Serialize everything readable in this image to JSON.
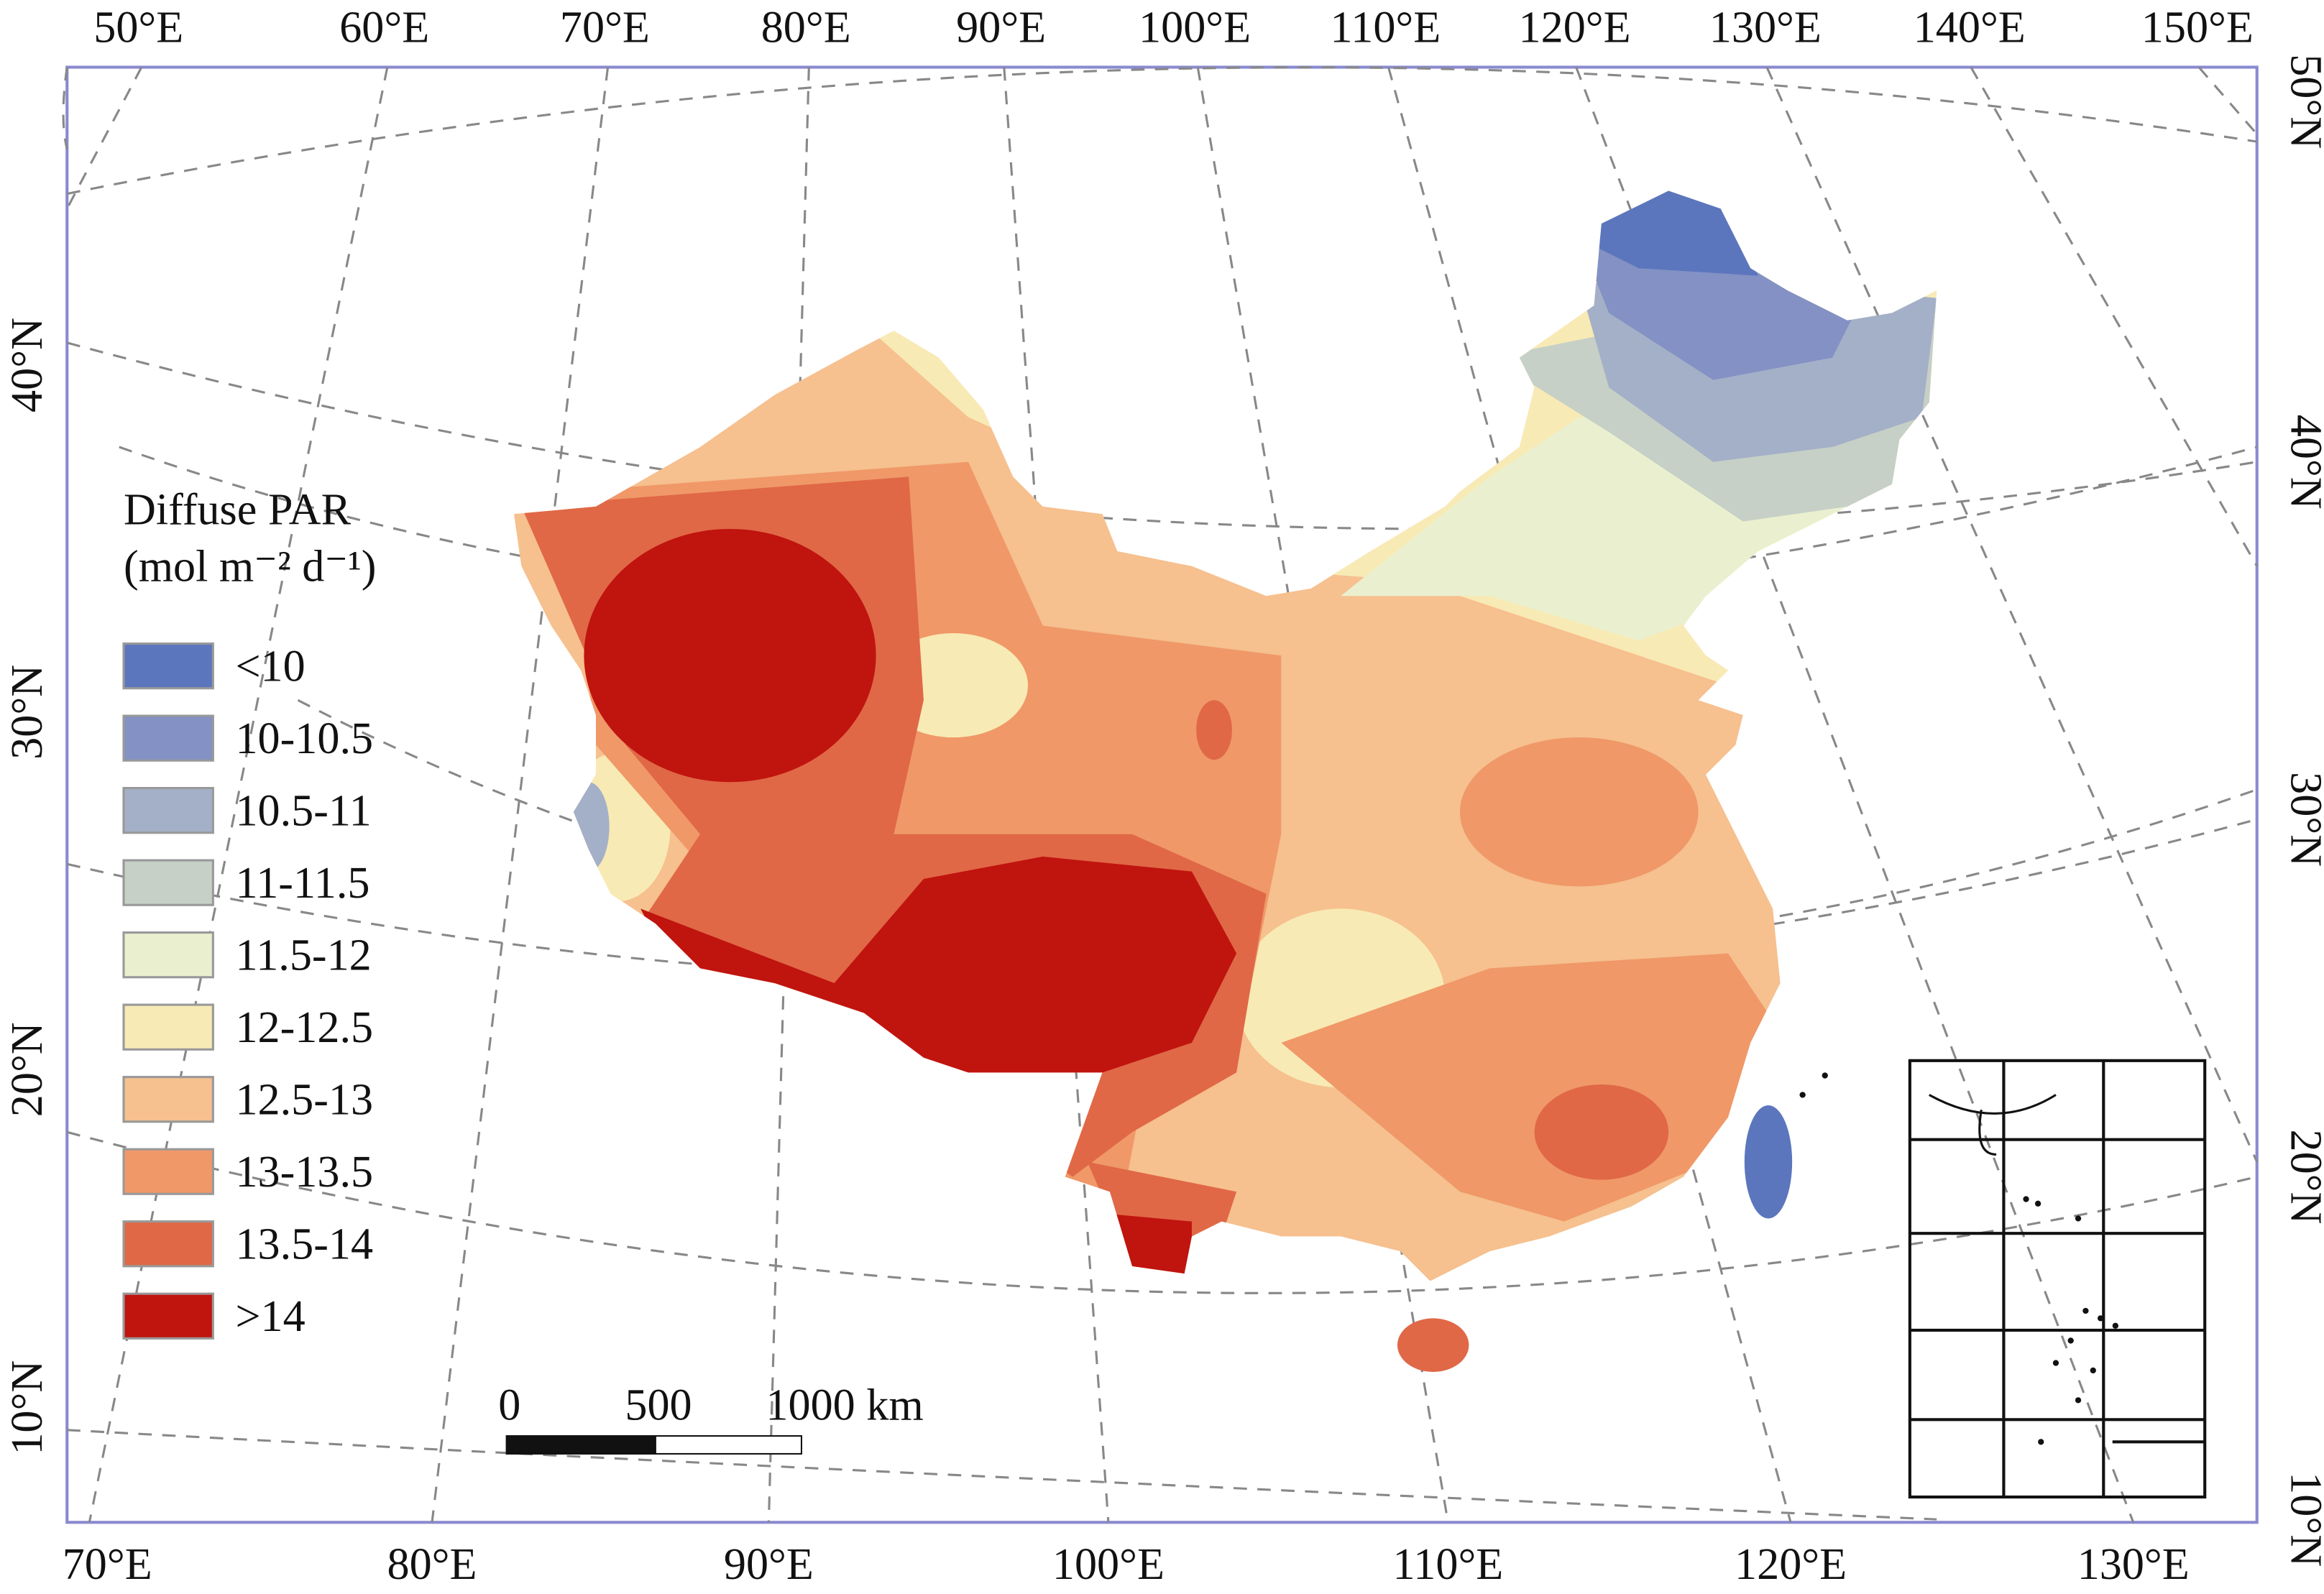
{
  "top_labels": [
    "50°E",
    "60°E",
    "70°E",
    "80°E",
    "90°E",
    "100°E",
    "110°E",
    "120°E",
    "130°E",
    "140°E",
    "150°E"
  ],
  "bottom_labels": [
    "70°E",
    "80°E",
    "90°E",
    "100°E",
    "110°E",
    "120°E",
    "130°E"
  ],
  "left_labels": [
    "40°N",
    "30°N",
    "20°N",
    "10°N"
  ],
  "right_labels": [
    "50°N",
    "40°N",
    "30°N",
    "20°N",
    "10°N"
  ],
  "legend": {
    "title": "Diffuse PAR",
    "unit": "(mol m⁻² d⁻¹)",
    "items": [
      {
        "label": "<10",
        "color": "#5b76bd"
      },
      {
        "label": "10-10.5",
        "color": "#8391c4"
      },
      {
        "label": "10.5-11",
        "color": "#a4b0c8"
      },
      {
        "label": "11-11.5",
        "color": "#c6d0c6"
      },
      {
        "label": "11.5-12",
        "color": "#eaf0cf"
      },
      {
        "label": "12-12.5",
        "color": "#f8eab4"
      },
      {
        "label": "12.5-13",
        "color": "#f6c08f"
      },
      {
        "label": "13-13.5",
        "color": "#f09868"
      },
      {
        "label": "13.5-14",
        "color": "#e06846"
      },
      {
        "label": ">14",
        "color": "#c0140f"
      }
    ]
  },
  "scale_bar": {
    "labels": [
      "0",
      "500",
      "1000 km"
    ]
  }
}
